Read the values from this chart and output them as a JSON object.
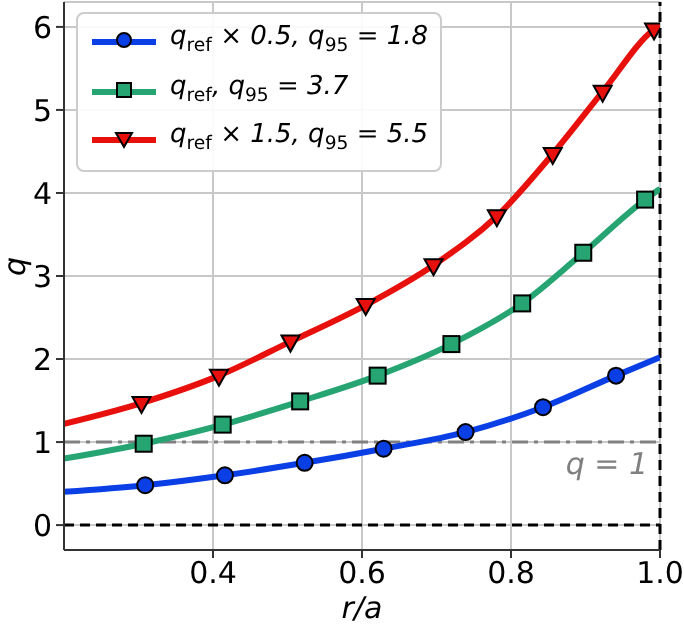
{
  "chart_data": {
    "type": "line",
    "xlabel": "r/a",
    "ylabel": "q",
    "xlim": [
      0.2,
      1.0
    ],
    "ylim": [
      -0.3,
      6.3
    ],
    "xticks": [
      0.4,
      0.6,
      0.8,
      {
        "value": 1.0,
        "label": "1.0"
      }
    ],
    "yticks": [
      0,
      1,
      2,
      3,
      4,
      5,
      6
    ],
    "grid": true,
    "legend": "top left",
    "series": [
      {
        "name": "q$_{ref}$ × 0.5, q$_{95}$ = 1.8",
        "color": "#0b3fe6",
        "x": [
          0.2,
          0.309,
          0.416,
          0.523,
          0.629,
          0.739,
          0.843,
          0.941,
          1.0
        ],
        "values": [
          0.4,
          0.48,
          0.6,
          0.75,
          0.92,
          1.12,
          1.42,
          1.8,
          2.02
        ]
      },
      {
        "name": "q$_{ref}$, q$_{95}$ = 3.7",
        "color": "#26a472",
        "x": [
          0.2,
          0.307,
          0.413,
          0.517,
          0.621,
          0.72,
          0.815,
          0.897,
          0.98,
          1.0
        ],
        "values": [
          0.8,
          0.98,
          1.21,
          1.49,
          1.8,
          2.18,
          2.67,
          3.28,
          3.92,
          4.05
        ]
      },
      {
        "name": "q$_{ref}$ × 1.5, q$_{95}$ = 5.5",
        "color": "#e8100c",
        "x": [
          0.2,
          0.304,
          0.408,
          0.504,
          0.605,
          0.696,
          0.781,
          0.856,
          0.923,
          0.992,
          1.0
        ],
        "values": [
          1.22,
          1.47,
          1.8,
          2.21,
          2.65,
          3.13,
          3.72,
          4.47,
          5.22,
          5.97,
          6.02
        ]
      },
      {
        "type": "scatter",
        "color": "#0b3fe6",
        "marker": "circle",
        "x": [
          0.309,
          0.416,
          0.523,
          0.629,
          0.739,
          0.843,
          0.941
        ],
        "values": [
          0.48,
          0.6,
          0.75,
          0.92,
          1.12,
          1.42,
          1.8
        ]
      },
      {
        "type": "scatter",
        "color": "#26a472",
        "marker": "square",
        "x": [
          0.307,
          0.413,
          0.517,
          0.621,
          0.72,
          0.815,
          0.897,
          0.98
        ],
        "values": [
          0.98,
          1.21,
          1.49,
          1.8,
          2.18,
          2.67,
          3.28,
          3.92
        ]
      },
      {
        "type": "scatter",
        "color": "#e8100c",
        "marker": "triangle",
        "x": [
          0.304,
          0.408,
          0.504,
          0.605,
          0.696,
          0.781,
          0.856,
          0.923,
          0.992
        ],
        "values": [
          1.47,
          1.8,
          2.21,
          2.65,
          3.13,
          3.72,
          4.47,
          5.22,
          5.97
        ]
      }
    ],
    "ref_lines": [
      {
        "axis": "y",
        "value": 1,
        "label": "q = 1",
        "color": "#808080",
        "line_style": "dashdot"
      },
      {
        "axis": "y",
        "value": 0,
        "color": "#000000",
        "line_style": "dashed"
      },
      {
        "axis": "x",
        "value": 1.0,
        "color": "#000000",
        "line_style": "dashed"
      }
    ]
  }
}
